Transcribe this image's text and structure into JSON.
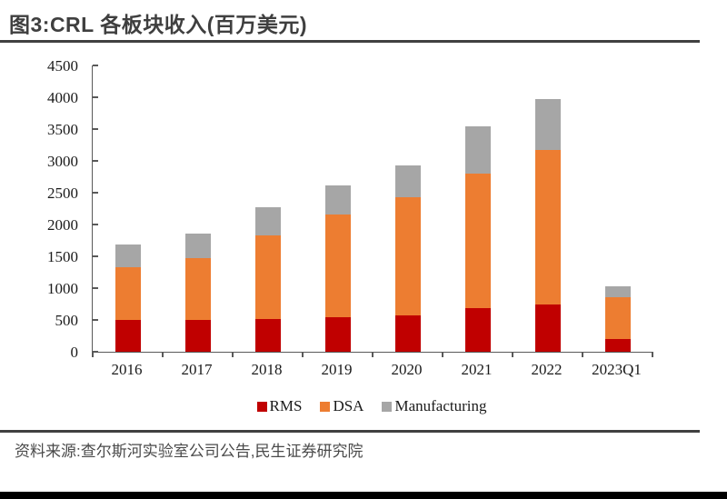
{
  "page": {
    "title": "图3:CRL 各板块收入(百万美元)",
    "source": "资料来源:查尔斯河实验室公司公告,民生证券研究院"
  },
  "colors": {
    "rms": "#C00000",
    "dsa": "#ED7D31",
    "manufacturing": "#A6A6A6",
    "rule_dark": "#404040",
    "axis_line": "#595959",
    "tick_text": "#1A1A1A",
    "bottom_bar": "#000000"
  },
  "chart_data": {
    "type": "bar",
    "stacked": true,
    "title": "图3:CRL 各板块收入(百万美元)",
    "categories": [
      "2016",
      "2017",
      "2018",
      "2019",
      "2020",
      "2021",
      "2022",
      "2023Q1"
    ],
    "series": [
      {
        "name": "RMS",
        "color": "#C00000",
        "values": [
          494,
          501,
          520,
          537,
          576,
          687,
          744,
          205
        ]
      },
      {
        "name": "DSA",
        "color": "#ED7D31",
        "values": [
          839,
          977,
          1316,
          1619,
          1846,
          2113,
          2426,
          649
        ]
      },
      {
        "name": "Manufacturing",
        "color": "#A6A6A6",
        "values": [
          349,
          380,
          430,
          465,
          502,
          741,
          807,
          175
        ]
      }
    ],
    "totals": [
      1682,
      1858,
      2266,
      2621,
      2924,
      3541,
      3977,
      1029
    ],
    "xlabel": "",
    "ylabel": "",
    "ylim": [
      0,
      4500
    ],
    "ytick_step": 500,
    "ytick_labels": [
      "0",
      "500",
      "1000",
      "1500",
      "2000",
      "2500",
      "3000",
      "3500",
      "4000",
      "4500"
    ],
    "grid": false,
    "legend_position": "bottom"
  }
}
